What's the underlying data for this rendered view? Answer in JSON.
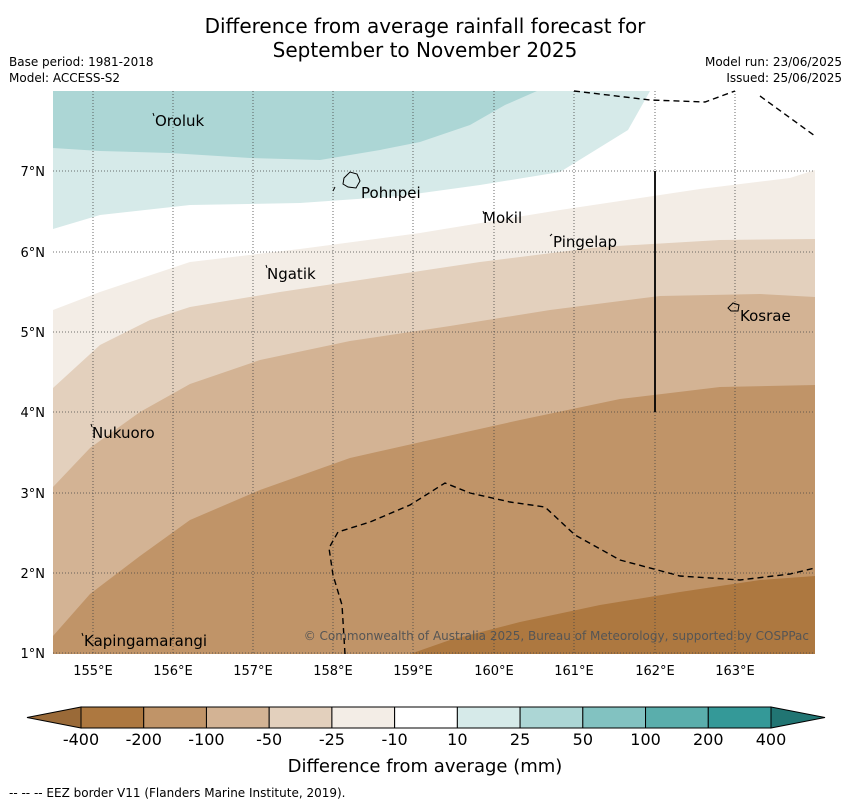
{
  "header": {
    "title_line1": "Difference from average rainfall forecast for",
    "title_line2": "September to November 2025",
    "base_period": "Base period: 1981-2018",
    "model": "Model: ACCESS-S2",
    "model_run": "Model run: 23/06/2025",
    "issued": "Issued: 25/06/2025"
  },
  "map": {
    "lon_ticks": [
      "155°E",
      "156°E",
      "157°E",
      "158°E",
      "159°E",
      "160°E",
      "161°E",
      "162°E",
      "163°E"
    ],
    "lat_ticks": [
      "7°N",
      "6°N",
      "5°N",
      "4°N",
      "3°N",
      "2°N",
      "1°N"
    ],
    "places": [
      {
        "name": "Oroluk"
      },
      {
        "name": "Pohnpei"
      },
      {
        "name": "Mokil"
      },
      {
        "name": "Pingelap"
      },
      {
        "name": "Ngatik"
      },
      {
        "name": "Kosrae"
      },
      {
        "name": "Nukuoro"
      },
      {
        "name": "Kapingamarangi"
      }
    ],
    "copyright": "© Commonwealth of Australia 2025, Bureau of Meteorology, supported by COSPPac"
  },
  "colorbar": {
    "labels": [
      "-400",
      "-200",
      "-100",
      "-50",
      "-25",
      "-10",
      "10",
      "25",
      "50",
      "100",
      "200",
      "400"
    ],
    "colors": [
      "#9a6a38",
      "#ad7840",
      "#c09468",
      "#d3b394",
      "#e3d0bd",
      "#f3ede6",
      "#ffffff",
      "#d6eae9",
      "#acd6d5",
      "#82c2c1",
      "#5aaeac",
      "#349998",
      "#217573"
    ],
    "title": "Difference from average (mm)"
  },
  "footnote": "--  --  -- EEZ border V11 (Flanders Marine Institute, 2019)."
}
